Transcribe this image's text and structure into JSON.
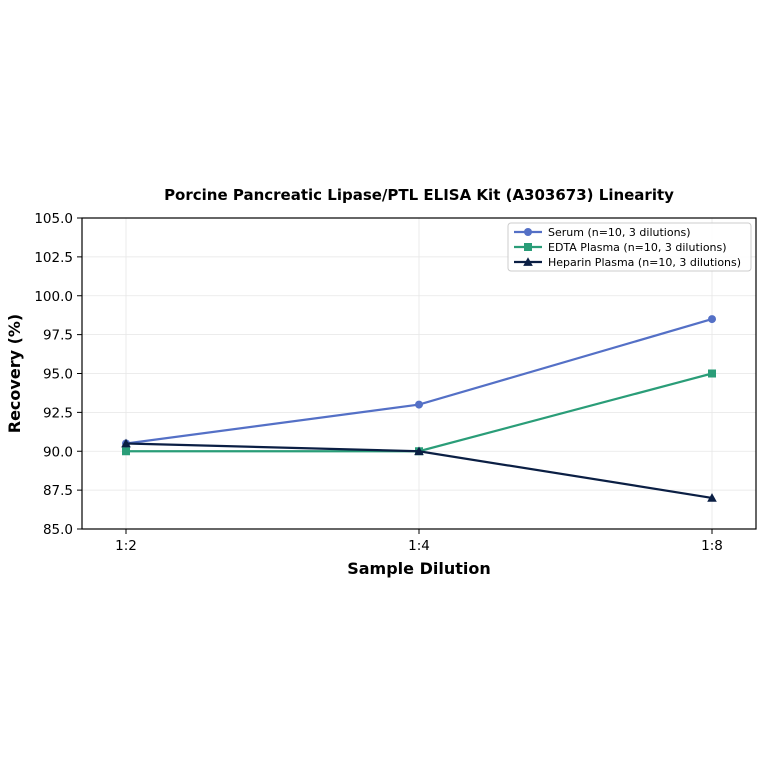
{
  "chart_data": {
    "type": "line",
    "title": "Porcine Pancreatic Lipase/PTL ELISA Kit (A303673) Linearity",
    "xlabel": "Sample Dilution",
    "ylabel": "Recovery (%)",
    "categories": [
      "1:2",
      "1:4",
      "1:8"
    ],
    "ylim": [
      85.0,
      105.0
    ],
    "yticks": [
      "85.0",
      "87.5",
      "90.0",
      "92.5",
      "95.0",
      "97.5",
      "100.0",
      "102.5",
      "105.0"
    ],
    "grid": true,
    "legend_position": "top-right",
    "series": [
      {
        "name": "Serum (n=10, 3 dilutions)",
        "values": [
          90.5,
          93.0,
          98.5
        ],
        "color": "#5470c6",
        "marker": "circle"
      },
      {
        "name": "EDTA Plasma (n=10, 3 dilutions)",
        "values": [
          90.0,
          90.0,
          95.0
        ],
        "color": "#2a9d78",
        "marker": "square"
      },
      {
        "name": "Heparin Plasma (n=10, 3 dilutions)",
        "values": [
          90.5,
          90.0,
          87.0
        ],
        "color": "#0b1f44",
        "marker": "triangle"
      }
    ]
  }
}
